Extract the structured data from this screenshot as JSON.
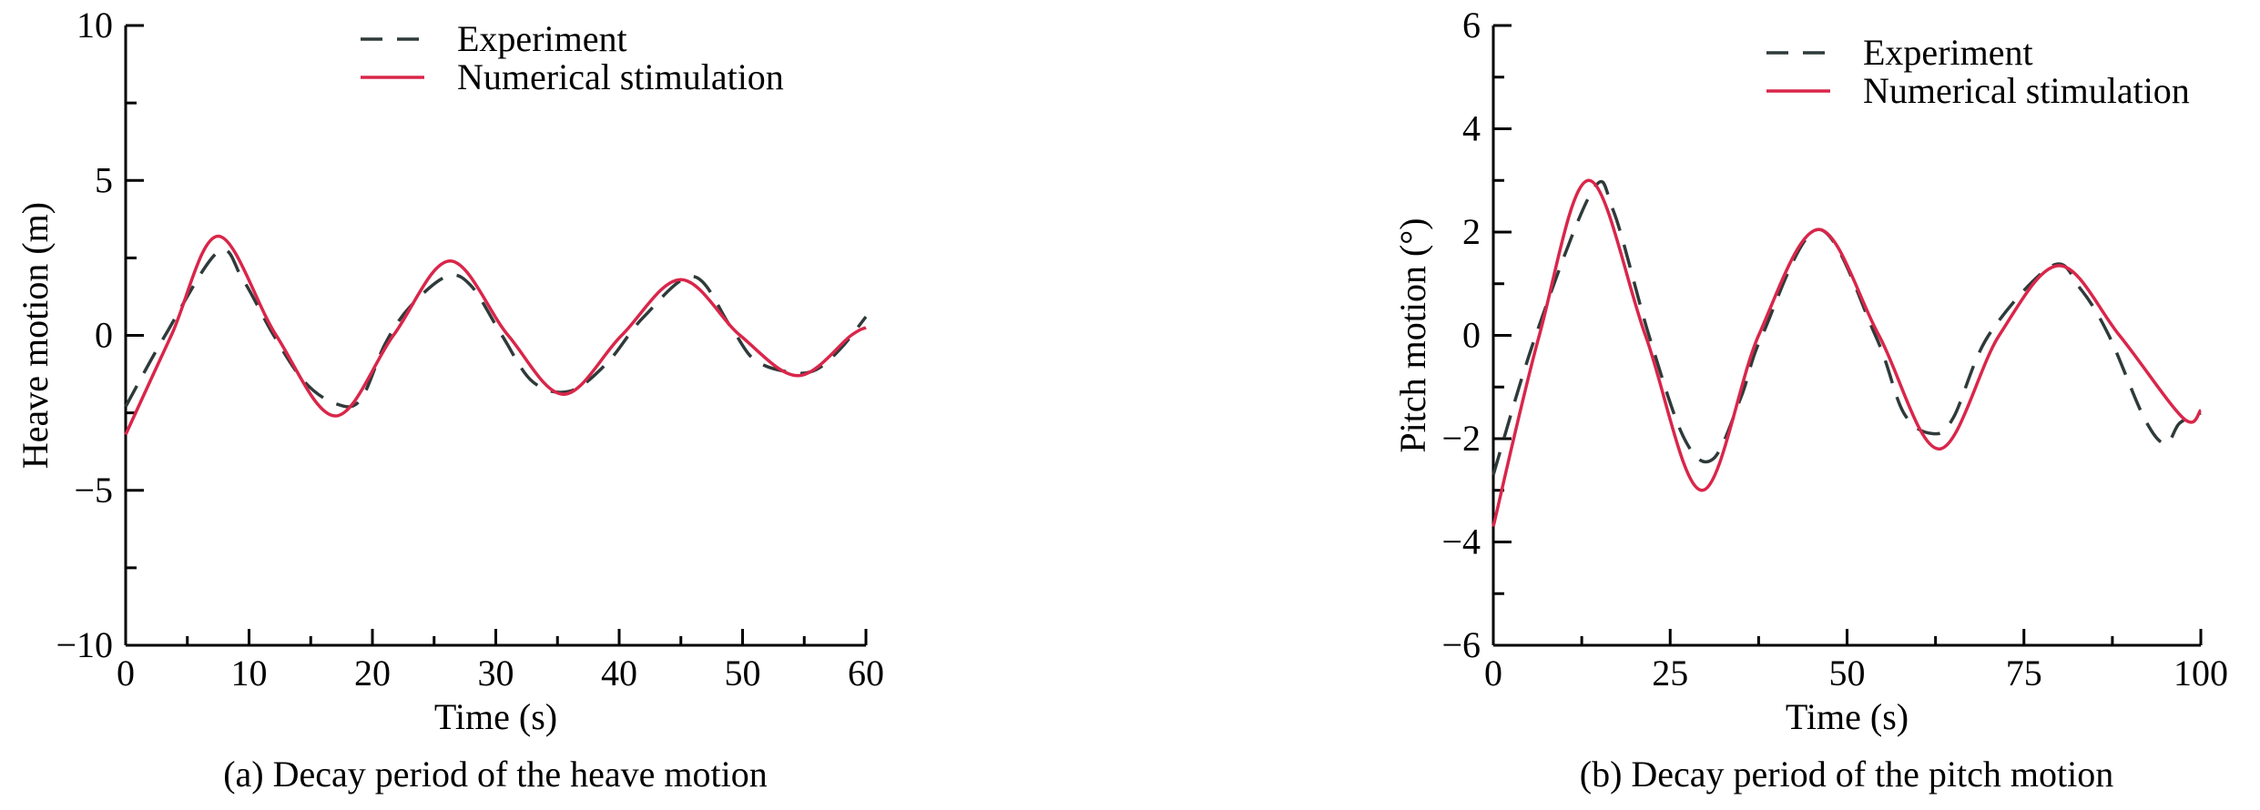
{
  "colors": {
    "experiment": "#2f3a3a",
    "numerical": "#d9264a",
    "axis": "#000000"
  },
  "chart_data": [
    {
      "type": "line",
      "caption": "(a) Decay period of the heave motion",
      "xlabel": "Time (s)",
      "ylabel": "Heave motion (m)",
      "xlim": [
        0,
        60
      ],
      "ylim": [
        -10,
        10
      ],
      "xticks": [
        0,
        10,
        20,
        30,
        40,
        50,
        60
      ],
      "xtick_labels": [
        "0",
        "10",
        "20",
        "30",
        "40",
        "50",
        "60"
      ],
      "yticks": [
        -10,
        -5,
        0,
        5,
        10
      ],
      "ytick_labels": [
        "−10",
        "−5",
        "0",
        "5",
        "10"
      ],
      "x_minor_step": 5,
      "y_minor_step": 2.5,
      "grid": false,
      "legend_position": "top-right",
      "series": [
        {
          "name": "Experiment",
          "style": "dashed",
          "x": [
            0,
            3.2,
            7.5,
            9.5,
            12,
            14.5,
            17,
            19,
            21,
            23,
            26,
            28,
            30.5,
            33,
            36,
            39,
            42,
            46,
            49,
            51,
            54,
            56,
            58,
            60
          ],
          "y": [
            -2.3,
            0,
            2.7,
            1.8,
            0,
            -1.5,
            -2.2,
            -2.1,
            -0.3,
            0.9,
            1.9,
            1.6,
            0,
            -1.5,
            -1.8,
            -0.9,
            0.6,
            1.9,
            0.3,
            -0.8,
            -1.2,
            -1.1,
            -0.4,
            0.6
          ]
        },
        {
          "name": "Numerical stimulation",
          "style": "solid",
          "x": [
            0,
            3.7,
            7.5,
            12.2,
            17,
            21.7,
            26.3,
            31,
            35.5,
            40.2,
            45,
            49.8,
            54.5,
            58.8,
            60
          ],
          "y": [
            -3.2,
            0,
            3.2,
            0,
            -2.6,
            0,
            2.4,
            0,
            -1.9,
            0,
            1.8,
            0,
            -1.3,
            0,
            0.25
          ]
        }
      ]
    },
    {
      "type": "line",
      "caption": "(b) Decay period of the pitch motion",
      "xlabel": "Time (s)",
      "ylabel": "Pitch motion (°)",
      "xlim": [
        0,
        100
      ],
      "ylim": [
        -6,
        6
      ],
      "xticks": [
        0,
        25,
        50,
        75,
        100
      ],
      "xtick_labels": [
        "0",
        "25",
        "50",
        "75",
        "100"
      ],
      "yticks": [
        -6,
        -4,
        -2,
        0,
        2,
        4,
        6
      ],
      "ytick_labels": [
        "−6",
        "−4",
        "−2",
        "0",
        "2",
        "4",
        "6"
      ],
      "x_minor_step": 12.5,
      "y_minor_step": 1,
      "grid": false,
      "legend_position": "top-right",
      "series": [
        {
          "name": "Experiment",
          "style": "dashed",
          "x": [
            0,
            6,
            14,
            17,
            22,
            27,
            31,
            35,
            38,
            46,
            54,
            58,
            62,
            65,
            70,
            79,
            83,
            87,
            92,
            95,
            97,
            100
          ],
          "y": [
            -2.7,
            0,
            2.8,
            2.4,
            0,
            -2.0,
            -2.4,
            -1.2,
            0,
            2.05,
            0,
            -1.5,
            -1.9,
            -1.6,
            0,
            1.35,
            0.9,
            0,
            -1.6,
            -2.1,
            -1.7,
            -1.5
          ]
        },
        {
          "name": "Numerical stimulation",
          "style": "solid",
          "x": [
            0,
            6.5,
            13.5,
            21.5,
            29.5,
            37.5,
            46,
            54.5,
            63,
            71.5,
            80,
            88.5,
            97.5,
            100
          ],
          "y": [
            -3.7,
            0,
            3.0,
            0,
            -3.0,
            0,
            2.05,
            0,
            -2.2,
            0,
            1.35,
            0,
            -1.6,
            -1.45
          ]
        }
      ]
    }
  ]
}
